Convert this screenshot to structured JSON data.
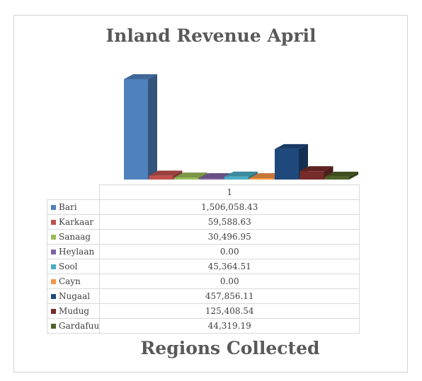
{
  "chart_data": {
    "type": "bar",
    "title": "Inland Revenue April",
    "xlabel": "Regions Collected",
    "ylabel": "",
    "categories": [
      "1"
    ],
    "series": [
      {
        "name": "Bari",
        "value": 1506058.43,
        "label": "1,506,058.43",
        "color": "#4f81bd"
      },
      {
        "name": "Karkaar",
        "value": 59588.63,
        "label": "59,588.63",
        "color": "#c0504d"
      },
      {
        "name": "Sanaag",
        "value": 30496.95,
        "label": "30,496.95",
        "color": "#9bbb59"
      },
      {
        "name": "Heylaan",
        "value": 0,
        "label": "0.00",
        "color": "#8064a2"
      },
      {
        "name": "Sool",
        "value": 45364.51,
        "label": "45,364.51",
        "color": "#4bacc6"
      },
      {
        "name": "Cayn",
        "value": 0,
        "label": "0.00",
        "color": "#f79646"
      },
      {
        "name": "Nugaal",
        "value": 457856.11,
        "label": "457,856.11",
        "color": "#1f497d"
      },
      {
        "name": "Mudug",
        "value": 125408.54,
        "label": "125,408.54",
        "color": "#772c2a"
      },
      {
        "name": "Gardafuu",
        "value": 44319.19,
        "label": "44,319.19",
        "color": "#4f6228"
      }
    ],
    "ylim": [
      0,
      1506058.43
    ],
    "grid": false,
    "legend": "table"
  }
}
